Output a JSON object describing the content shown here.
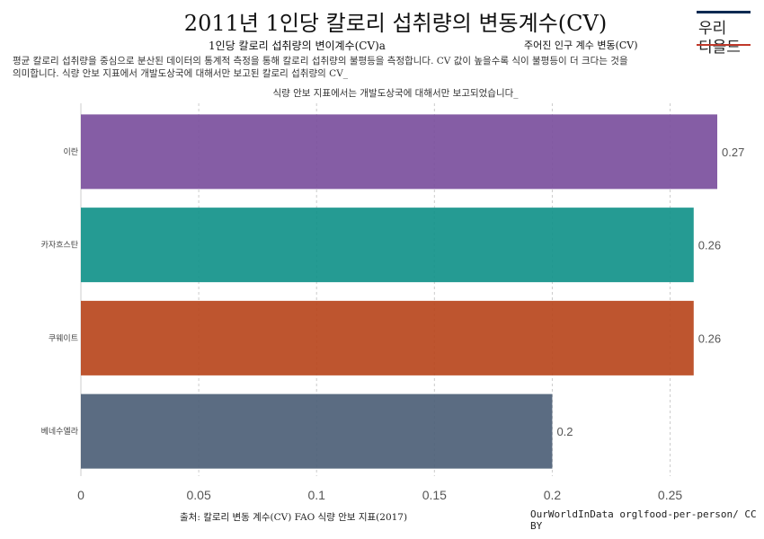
{
  "header": {
    "title": "2011년 1인당 칼로리 섭취량의 변동계수(CV)",
    "subtitle_left": "1인당 칼로리 섭취량의 변이계수(CV)a",
    "subtitle_right": "주어진 인구 계수 변동(CV)",
    "description": "평균 칼로리 섭취량을 중심으로 분산된 데이터의 통계적 측정을 통해 칼로리 섭취량의 불평등을 측정합니다. CV 값이 높을수록 식이 불평등이 더 크다는 것을 의미합니다. 식량 안보 지표에서 개발도상국에 대해서만 보고된 칼로리 섭취량의 CV_",
    "note": "식량 안보 지표에서는 개발도상국에 대해서만 보고되었습니다_"
  },
  "logo": {
    "line1": "우리",
    "line2": "디올드"
  },
  "footer": {
    "source_left": "출처: 칼로리 변동 계수(CV) FAO 식량 안보 지표(2017)",
    "source_right": "OurWorldInData orglfood-per-person/ CC BY"
  },
  "colors": {
    "grid": "#cccccc",
    "axis_text": "#555555",
    "label_text": "#444444"
  },
  "chart_data": {
    "type": "bar",
    "orientation": "horizontal",
    "categories": [
      "이란",
      "카자흐스탄",
      "쿠웨이트",
      "베네수엘라"
    ],
    "values": [
      0.27,
      0.26,
      0.26,
      0.2
    ],
    "value_labels": [
      "0.27",
      "0.26",
      "0.26",
      "0.2"
    ],
    "colors": [
      "#7b4f9d",
      "#12928a",
      "#b8461d",
      "#4d5f77"
    ],
    "xlim": [
      0,
      0.27
    ],
    "xticks": [
      0,
      0.05,
      0.1,
      0.15,
      0.2,
      0.25
    ],
    "xtick_labels": [
      "0",
      "0.05",
      "0.1",
      "0.15",
      "0.2",
      "0.25"
    ],
    "grid": true
  }
}
